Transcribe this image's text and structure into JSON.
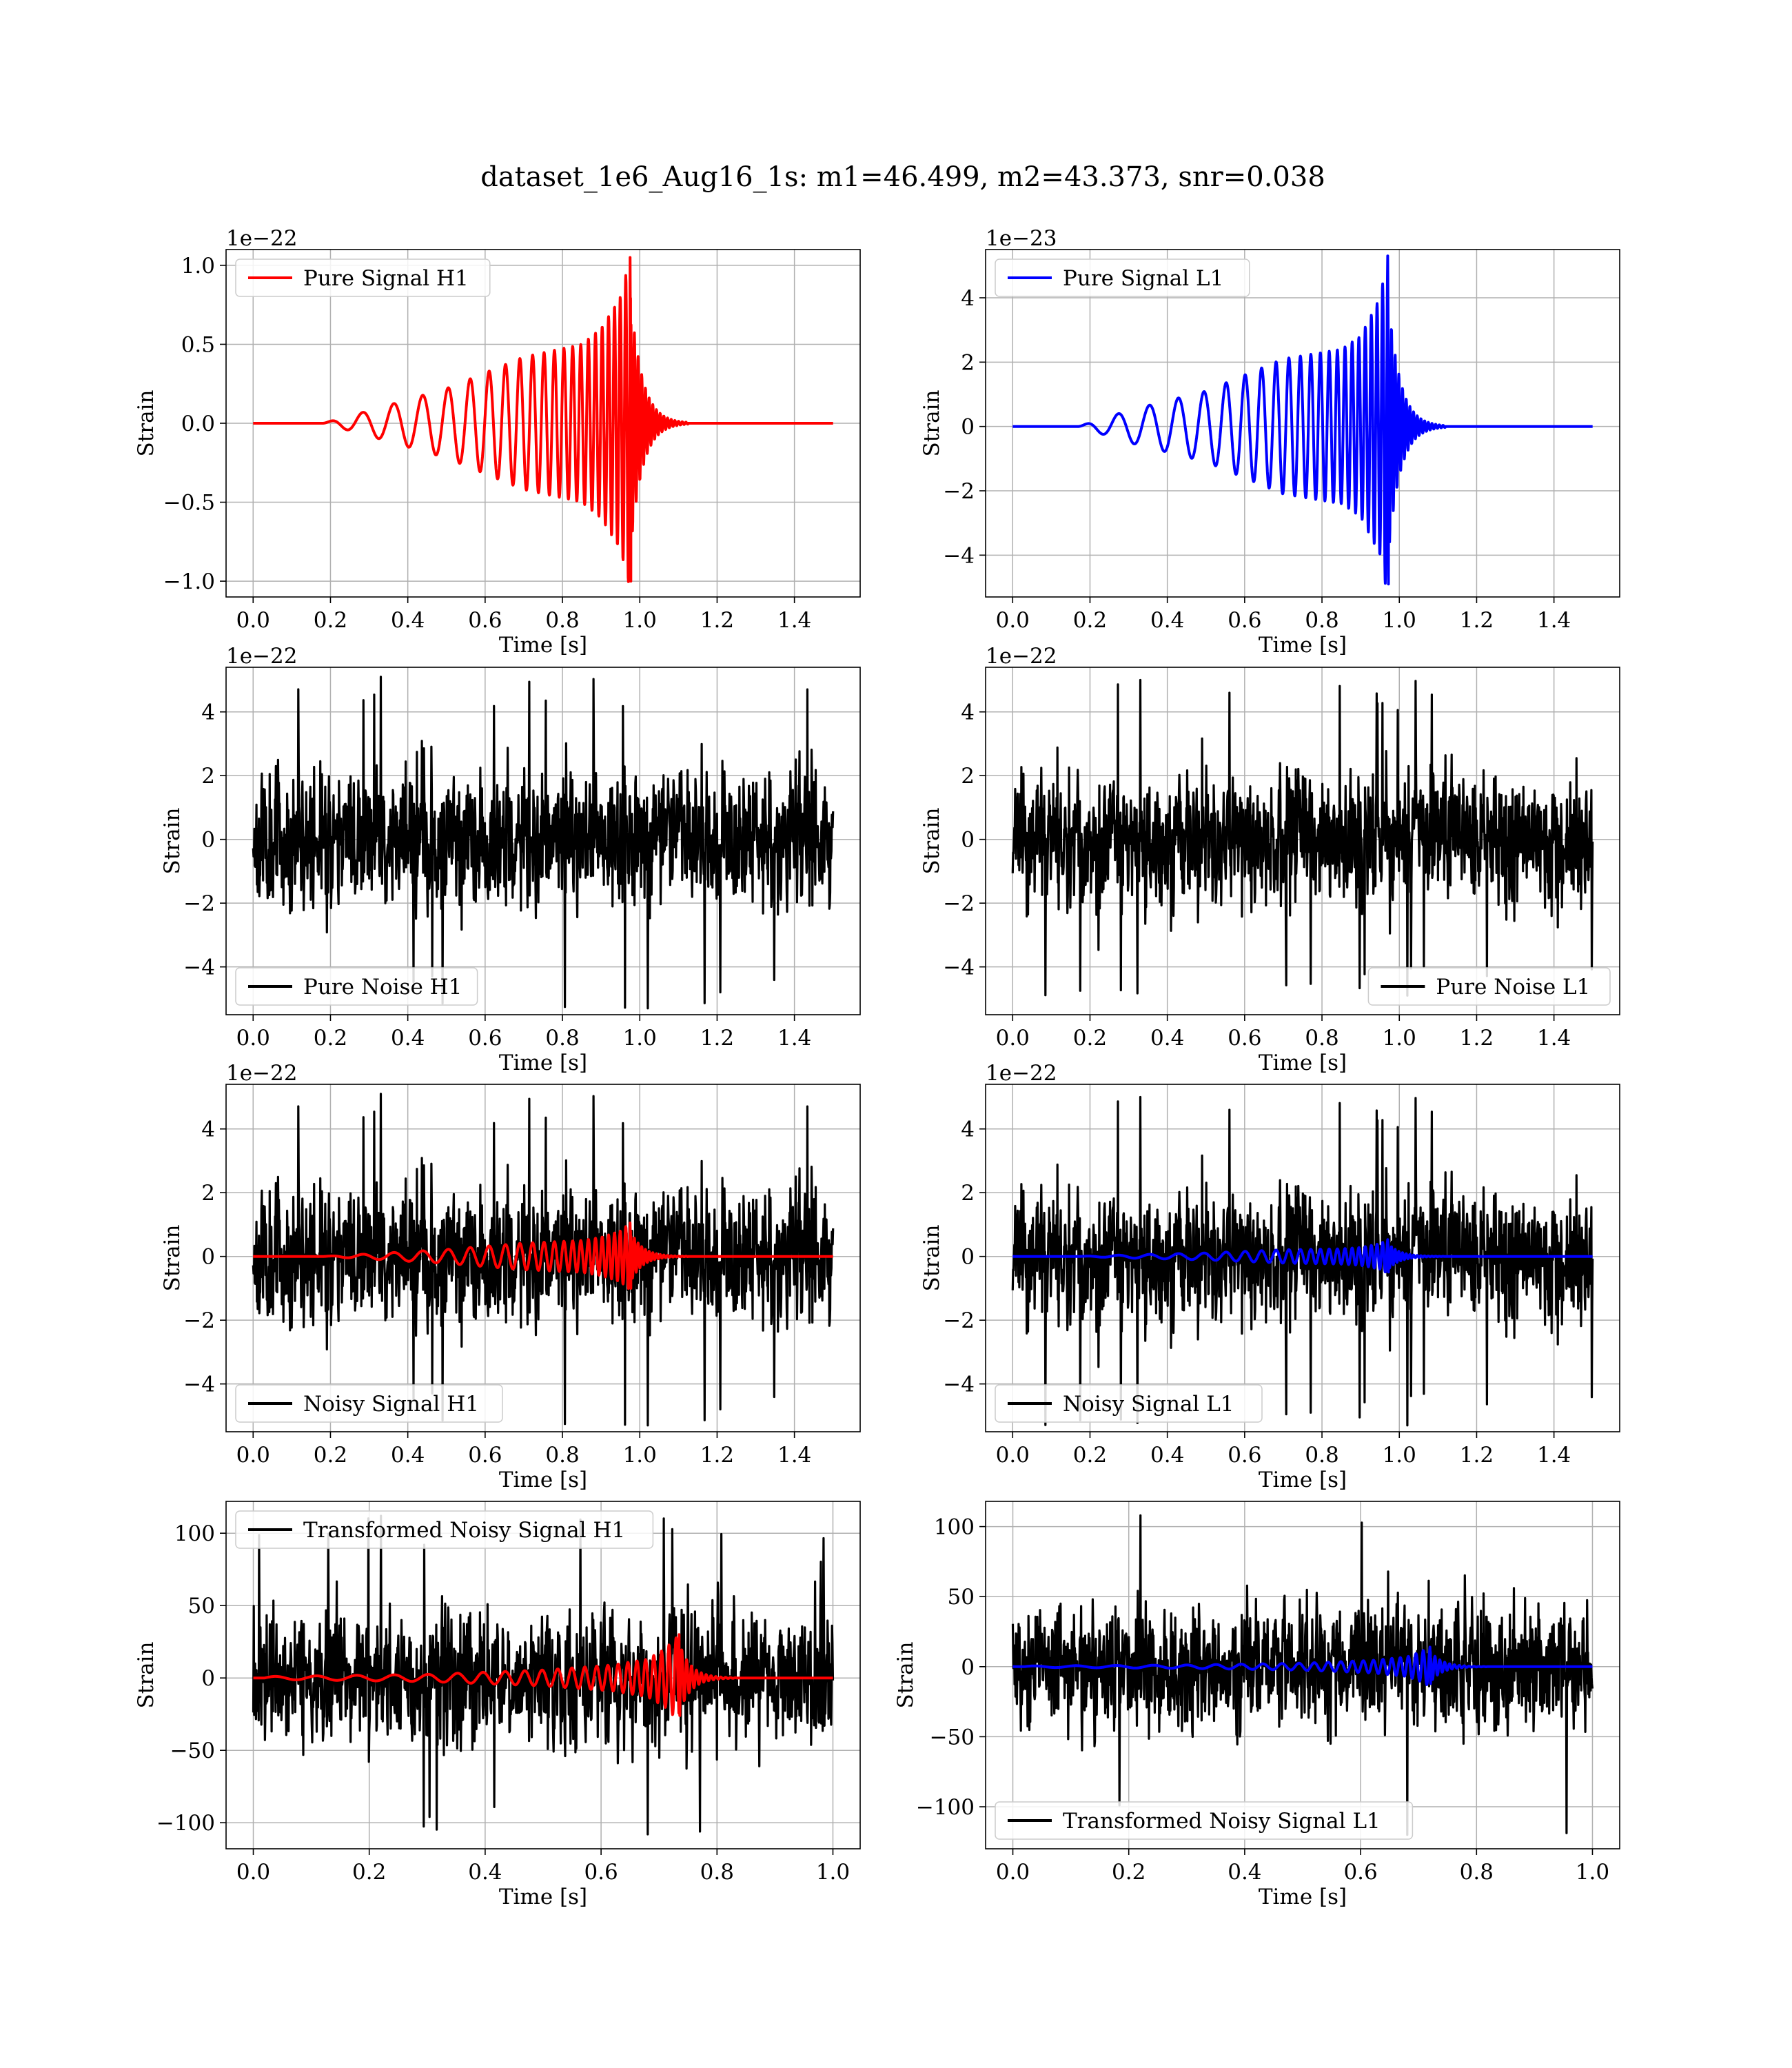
{
  "figure": {
    "title": "dataset_1e6_Aug16_1s: m1=46.499, m2=43.373, snr=0.038"
  },
  "chart_data": [
    {
      "id": "h1-pure-signal",
      "type": "line",
      "xlabel": "Time [s]",
      "ylabel": "Strain",
      "offset_text": "1e−22",
      "xlim": [
        -0.07,
        1.57
      ],
      "ylim": [
        -1.1,
        1.1
      ],
      "xticks": [
        0.0,
        0.2,
        0.4,
        0.6,
        0.8,
        1.0,
        1.2,
        1.4
      ],
      "xtick_labels": [
        "0.0",
        "0.2",
        "0.4",
        "0.6",
        "0.8",
        "1.0",
        "1.2",
        "1.4"
      ],
      "yticks": [
        -1.0,
        -0.5,
        0.0,
        0.5,
        1.0
      ],
      "ytick_labels": [
        "−1.0",
        "−0.5",
        "0.0",
        "0.5",
        "1.0"
      ],
      "grid": true,
      "legend_position": "upper-left",
      "series": [
        {
          "name": "Pure Signal H1",
          "color": "#ff0000",
          "kind": "chirp",
          "params": {
            "x_start": 0.0,
            "x_end": 1.5,
            "t0": 0.18,
            "tc": 0.975,
            "peak": 1.05,
            "min": -1.0,
            "envelope": [
              [
                0.18,
                0.0
              ],
              [
                0.3,
                0.08
              ],
              [
                0.5,
                0.22
              ],
              [
                0.7,
                0.42
              ],
              [
                0.85,
                0.5
              ],
              [
                0.9,
                0.6
              ],
              [
                0.95,
                0.8
              ],
              [
                0.975,
                1.05
              ]
            ],
            "f0": 12,
            "f1": 75,
            "ringdown": 0.03
          }
        }
      ]
    },
    {
      "id": "l1-pure-signal",
      "type": "line",
      "xlabel": "Time [s]",
      "ylabel": "Strain",
      "offset_text": "1e−23",
      "xlim": [
        -0.07,
        1.57
      ],
      "ylim": [
        -5.3,
        5.5
      ],
      "xticks": [
        0.0,
        0.2,
        0.4,
        0.6,
        0.8,
        1.0,
        1.2,
        1.4
      ],
      "xtick_labels": [
        "0.0",
        "0.2",
        "0.4",
        "0.6",
        "0.8",
        "1.0",
        "1.2",
        "1.4"
      ],
      "yticks": [
        -4,
        -2,
        0,
        2,
        4
      ],
      "ytick_labels": [
        "−4",
        "−2",
        "0",
        "2",
        "4"
      ],
      "grid": true,
      "legend_position": "upper-left",
      "series": [
        {
          "name": "Pure Signal L1",
          "color": "#0000ff",
          "kind": "chirp",
          "params": {
            "x_start": 0.0,
            "x_end": 1.5,
            "t0": 0.17,
            "tc": 0.97,
            "peak": 5.3,
            "min": -4.9,
            "envelope": [
              [
                0.17,
                0.0
              ],
              [
                0.3,
                0.5
              ],
              [
                0.5,
                1.1
              ],
              [
                0.7,
                2.1
              ],
              [
                0.85,
                2.4
              ],
              [
                0.9,
                2.8
              ],
              [
                0.95,
                4.0
              ],
              [
                0.97,
                5.3
              ]
            ],
            "f0": 12,
            "f1": 75,
            "ringdown": 0.03
          }
        }
      ]
    },
    {
      "id": "h1-pure-noise",
      "type": "line",
      "xlabel": "Time [s]",
      "ylabel": "Strain",
      "offset_text": "1e−22",
      "xlim": [
        -0.07,
        1.57
      ],
      "ylim": [
        -5.5,
        5.4
      ],
      "xticks": [
        0.0,
        0.2,
        0.4,
        0.6,
        0.8,
        1.0,
        1.2,
        1.4
      ],
      "xtick_labels": [
        "0.0",
        "0.2",
        "0.4",
        "0.6",
        "0.8",
        "1.0",
        "1.2",
        "1.4"
      ],
      "yticks": [
        -4,
        -2,
        0,
        2,
        4
      ],
      "ytick_labels": [
        "−4",
        "−2",
        "0",
        "2",
        "4"
      ],
      "grid": true,
      "legend_position": "lower-left",
      "series": [
        {
          "name": "Pure Noise H1",
          "color": "#000000",
          "kind": "noise",
          "params": {
            "x_start": 0.0,
            "x_end": 1.5,
            "n": 1400,
            "sigma": 1.25,
            "max": 5.1,
            "min": -5.3,
            "seed": 11
          }
        }
      ]
    },
    {
      "id": "l1-pure-noise",
      "type": "line",
      "xlabel": "Time [s]",
      "ylabel": "Strain",
      "offset_text": "1e−22",
      "xlim": [
        -0.07,
        1.57
      ],
      "ylim": [
        -5.5,
        5.4
      ],
      "xticks": [
        0.0,
        0.2,
        0.4,
        0.6,
        0.8,
        1.0,
        1.2,
        1.4
      ],
      "xtick_labels": [
        "0.0",
        "0.2",
        "0.4",
        "0.6",
        "0.8",
        "1.0",
        "1.2",
        "1.4"
      ],
      "yticks": [
        -4,
        -2,
        0,
        2,
        4
      ],
      "ytick_labels": [
        "−4",
        "−2",
        "0",
        "2",
        "4"
      ],
      "grid": true,
      "legend_position": "lower-right",
      "series": [
        {
          "name": "Pure Noise L1",
          "color": "#000000",
          "kind": "noise",
          "params": {
            "x_start": 0.0,
            "x_end": 1.5,
            "n": 1400,
            "sigma": 1.2,
            "max": 5.0,
            "min": -4.9,
            "seed": 23
          }
        }
      ]
    },
    {
      "id": "h1-noisy-signal",
      "type": "line",
      "xlabel": "Time [s]",
      "ylabel": "Strain",
      "offset_text": "1e−22",
      "xlim": [
        -0.07,
        1.57
      ],
      "ylim": [
        -5.5,
        5.4
      ],
      "xticks": [
        0.0,
        0.2,
        0.4,
        0.6,
        0.8,
        1.0,
        1.2,
        1.4
      ],
      "xtick_labels": [
        "0.0",
        "0.2",
        "0.4",
        "0.6",
        "0.8",
        "1.0",
        "1.2",
        "1.4"
      ],
      "yticks": [
        -4,
        -2,
        0,
        2,
        4
      ],
      "ytick_labels": [
        "−4",
        "−2",
        "0",
        "2",
        "4"
      ],
      "grid": true,
      "legend_position": "lower-left",
      "series": [
        {
          "name": "Noisy Signal H1",
          "color": "#000000",
          "kind": "noise",
          "params": {
            "x_start": 0.0,
            "x_end": 1.5,
            "n": 1400,
            "sigma": 1.25,
            "max": 5.1,
            "min": -5.3,
            "seed": 11
          }
        },
        {
          "name": "",
          "color": "#ff0000",
          "kind": "chirp",
          "params": {
            "x_start": 0.0,
            "x_end": 1.5,
            "t0": 0.18,
            "tc": 0.975,
            "peak": 1.05,
            "min": -1.0,
            "envelope": [
              [
                0.18,
                0.0
              ],
              [
                0.3,
                0.08
              ],
              [
                0.5,
                0.22
              ],
              [
                0.7,
                0.42
              ],
              [
                0.85,
                0.5
              ],
              [
                0.9,
                0.6
              ],
              [
                0.95,
                0.8
              ],
              [
                0.975,
                1.05
              ]
            ],
            "f0": 12,
            "f1": 75,
            "ringdown": 0.03
          }
        }
      ]
    },
    {
      "id": "l1-noisy-signal",
      "type": "line",
      "xlabel": "Time [s]",
      "ylabel": "Strain",
      "offset_text": "1e−22",
      "xlim": [
        -0.07,
        1.57
      ],
      "ylim": [
        -5.5,
        5.4
      ],
      "xticks": [
        0.0,
        0.2,
        0.4,
        0.6,
        0.8,
        1.0,
        1.2,
        1.4
      ],
      "xtick_labels": [
        "0.0",
        "0.2",
        "0.4",
        "0.6",
        "0.8",
        "1.0",
        "1.2",
        "1.4"
      ],
      "yticks": [
        -4,
        -2,
        0,
        2,
        4
      ],
      "ytick_labels": [
        "−4",
        "−2",
        "0",
        "2",
        "4"
      ],
      "grid": true,
      "legend_position": "lower-left",
      "series": [
        {
          "name": "Noisy Signal L1",
          "color": "#000000",
          "kind": "noise",
          "params": {
            "x_start": 0.0,
            "x_end": 1.5,
            "n": 1400,
            "sigma": 1.2,
            "max": 5.0,
            "min": -5.3,
            "seed": 23
          }
        },
        {
          "name": "",
          "color": "#0000ff",
          "kind": "chirp",
          "params": {
            "x_start": 0.0,
            "x_end": 1.5,
            "t0": 0.17,
            "tc": 0.97,
            "peak": 0.53,
            "min": -0.49,
            "envelope": [
              [
                0.17,
                0.0
              ],
              [
                0.3,
                0.05
              ],
              [
                0.5,
                0.11
              ],
              [
                0.7,
                0.21
              ],
              [
                0.85,
                0.24
              ],
              [
                0.9,
                0.28
              ],
              [
                0.95,
                0.4
              ],
              [
                0.97,
                0.53
              ]
            ],
            "f0": 12,
            "f1": 75,
            "ringdown": 0.03
          }
        }
      ]
    },
    {
      "id": "h1-transformed",
      "type": "line",
      "xlabel": "Time [s]",
      "ylabel": "Strain",
      "offset_text": "",
      "xlim": [
        -0.047,
        1.047
      ],
      "ylim": [
        -118,
        122
      ],
      "xticks": [
        0.0,
        0.2,
        0.4,
        0.6,
        0.8,
        1.0
      ],
      "xtick_labels": [
        "0.0",
        "0.2",
        "0.4",
        "0.6",
        "0.8",
        "1.0"
      ],
      "yticks": [
        -100,
        -50,
        0,
        50,
        100
      ],
      "ytick_labels": [
        "−100",
        "−50",
        "0",
        "50",
        "100"
      ],
      "grid": true,
      "legend_position": "upper-left",
      "series": [
        {
          "name": "Transformed Noisy Signal H1",
          "color": "#000000",
          "kind": "noise",
          "params": {
            "x_start": 0.0,
            "x_end": 1.0,
            "n": 1300,
            "sigma": 27,
            "max": 112,
            "min": -108,
            "seed": 37
          }
        },
        {
          "name": "",
          "color": "#ff0000",
          "kind": "chirp",
          "params": {
            "x_start": 0.0,
            "x_end": 1.0,
            "t0": 0.02,
            "tc": 0.735,
            "peak": 30,
            "min": -26,
            "envelope": [
              [
                0.02,
                1.0
              ],
              [
                0.3,
                2.5
              ],
              [
                0.5,
                5.5
              ],
              [
                0.62,
                9
              ],
              [
                0.68,
                13
              ],
              [
                0.71,
                20
              ],
              [
                0.735,
                30
              ]
            ],
            "f0": 14,
            "f1": 85,
            "ringdown": 0.02
          }
        }
      ]
    },
    {
      "id": "l1-transformed",
      "type": "line",
      "xlabel": "Time [s]",
      "ylabel": "Strain",
      "offset_text": "",
      "xlim": [
        -0.047,
        1.047
      ],
      "ylim": [
        -130,
        118
      ],
      "xticks": [
        0.0,
        0.2,
        0.4,
        0.6,
        0.8,
        1.0
      ],
      "xtick_labels": [
        "0.0",
        "0.2",
        "0.4",
        "0.6",
        "0.8",
        "1.0"
      ],
      "yticks": [
        -100,
        -50,
        0,
        50,
        100
      ],
      "ytick_labels": [
        "−100",
        "−50",
        "0",
        "50",
        "100"
      ],
      "grid": true,
      "legend_position": "lower-left",
      "series": [
        {
          "name": "Transformed Noisy Signal L1",
          "color": "#000000",
          "kind": "noise",
          "params": {
            "x_start": 0.0,
            "x_end": 1.0,
            "n": 1300,
            "sigma": 27,
            "max": 108,
            "min": -120,
            "seed": 53
          }
        },
        {
          "name": "",
          "color": "#0000ff",
          "kind": "chirp",
          "params": {
            "x_start": 0.0,
            "x_end": 1.0,
            "t0": 0.02,
            "tc": 0.72,
            "peak": 14,
            "min": -12,
            "envelope": [
              [
                0.02,
                0.5
              ],
              [
                0.3,
                1.2
              ],
              [
                0.5,
                2.5
              ],
              [
                0.62,
                4.5
              ],
              [
                0.68,
                7
              ],
              [
                0.7,
                10
              ],
              [
                0.72,
                14
              ]
            ],
            "f0": 14,
            "f1": 85,
            "ringdown": 0.02
          }
        }
      ]
    }
  ]
}
